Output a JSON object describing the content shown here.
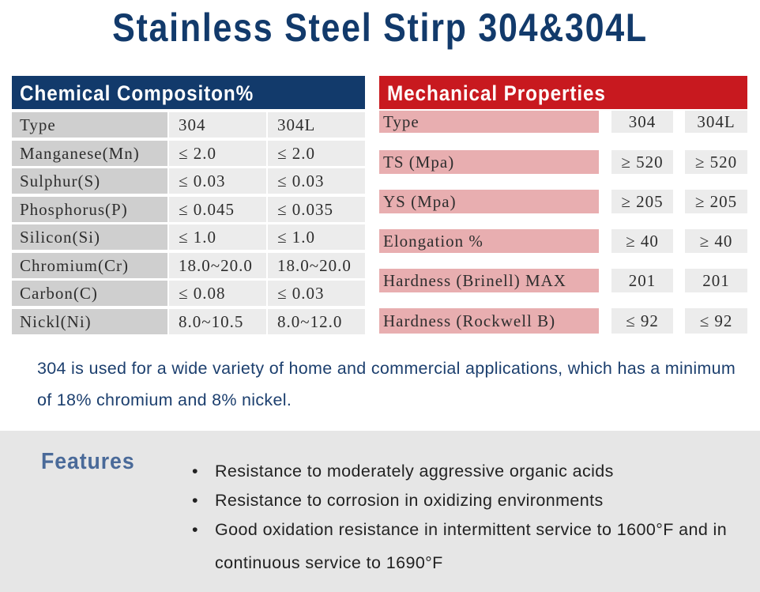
{
  "title": "Stainless Steel Stirp 304&304L",
  "chemical": {
    "header": "Chemical Compositon%",
    "rows": [
      {
        "name": "Type",
        "v304": "304",
        "v304l": "304L"
      },
      {
        "name": "Manganese(Mn)",
        "v304": "≤ 2.0",
        "v304l": "≤ 2.0"
      },
      {
        "name": "Sulphur(S)",
        "v304": "≤ 0.03",
        "v304l": "≤ 0.03"
      },
      {
        "name": "Phosphorus(P)",
        "v304": "≤ 0.045",
        "v304l": "≤ 0.035"
      },
      {
        "name": "Silicon(Si)",
        "v304": "≤ 1.0",
        "v304l": "≤ 1.0"
      },
      {
        "name": "Chromium(Cr)",
        "v304": "18.0~20.0",
        "v304l": "18.0~20.0"
      },
      {
        "name": "Carbon(C)",
        "v304": "≤ 0.08",
        "v304l": "≤ 0.03"
      },
      {
        "name": "Nickl(Ni)",
        "v304": "8.0~10.5",
        "v304l": "8.0~12.0"
      }
    ]
  },
  "mechanical": {
    "header": "Mechanical Properties",
    "rows": [
      {
        "name": "Type",
        "v304": "304",
        "v304l": "304L"
      },
      {
        "name": "TS (Mpa)",
        "v304": "≥ 520",
        "v304l": "≥ 520"
      },
      {
        "name": "YS (Mpa)",
        "v304": "≥ 205",
        "v304l": "≥ 205"
      },
      {
        "name": "Elongation %",
        "v304": "≥ 40",
        "v304l": "≥ 40"
      },
      {
        "name": "Hardness (Brinell) MAX",
        "v304": "201",
        "v304l": "201"
      },
      {
        "name": "Hardness (Rockwell B)",
        "v304": "≤ 92",
        "v304l": "≤ 92"
      }
    ]
  },
  "description": "304 is used for a wide variety of home and commercial applications, which has a minimum of 18% chromium and 8% nickel.",
  "features": {
    "title": "Features",
    "bullet": "•",
    "items": [
      "Resistance to moderately aggressive organic acids",
      "Resistance to corrosion in oxidizing environments",
      "Good oxidation resistance in intermittent service to 1600°F and in continuous service to 1690°F"
    ]
  },
  "colors": {
    "title": "#123a6b",
    "chemical_header": "#123a6b",
    "mechanical_header": "#c8191f",
    "mechanical_name_cell": "#e8aeb0",
    "features_band": "#e6e6e6"
  }
}
